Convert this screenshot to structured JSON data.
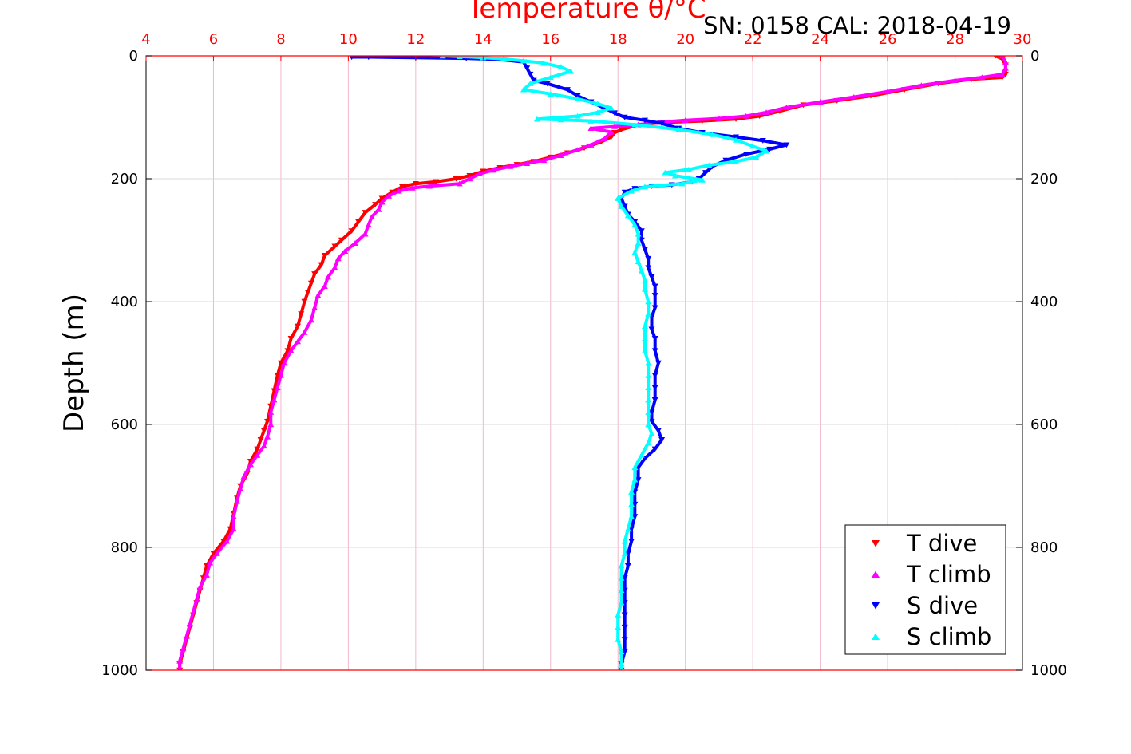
{
  "chart_data": {
    "type": "scatter",
    "title": "Temperature θ/°C",
    "subtitle": "SN: 0158  CAL: 2018-04-19",
    "ylabel": "Depth (m)",
    "xlim": [
      4,
      30
    ],
    "ylim": [
      0,
      1000
    ],
    "y_inverted": true,
    "grid": true,
    "legend_position": "bottom-right",
    "x_ticks": [
      "4",
      "6",
      "8",
      "10",
      "12",
      "14",
      "16",
      "18",
      "20",
      "22",
      "24",
      "26",
      "28",
      "30"
    ],
    "y_ticks": [
      "0",
      "200",
      "400",
      "600",
      "800",
      "1000"
    ],
    "colors": {
      "top_axis": "#ff0000",
      "grid_vertical": "#f0b8cc",
      "grid_horizontal": "#d9d9d9",
      "T dive": "#ff0000",
      "T climb": "#ff00ff",
      "S dive": "#0000ff",
      "S climb": "#00ffff"
    },
    "series": [
      {
        "name": "T dive",
        "marker": "triangle-down",
        "points": [
          [
            29.2,
            0
          ],
          [
            29.4,
            5
          ],
          [
            29.5,
            15
          ],
          [
            29.5,
            30
          ],
          [
            29.4,
            35
          ],
          [
            28.5,
            38
          ],
          [
            27.5,
            45
          ],
          [
            26.5,
            55
          ],
          [
            25.5,
            65
          ],
          [
            24.5,
            73
          ],
          [
            23.5,
            80
          ],
          [
            22.8,
            90
          ],
          [
            22.2,
            98
          ],
          [
            21.5,
            103
          ],
          [
            20.5,
            106
          ],
          [
            19.5,
            108
          ],
          [
            19.0,
            110
          ],
          [
            18.5,
            114
          ],
          [
            18.1,
            120
          ],
          [
            17.9,
            125
          ],
          [
            17.8,
            132
          ],
          [
            17.5,
            140
          ],
          [
            17.0,
            150
          ],
          [
            16.5,
            158
          ],
          [
            16.0,
            165
          ],
          [
            15.5,
            172
          ],
          [
            15.0,
            177
          ],
          [
            14.5,
            182
          ],
          [
            14.0,
            188
          ],
          [
            13.6,
            195
          ],
          [
            13.2,
            200
          ],
          [
            12.6,
            205
          ],
          [
            12.0,
            208
          ],
          [
            11.6,
            213
          ],
          [
            11.3,
            222
          ],
          [
            11.0,
            232
          ],
          [
            10.8,
            242
          ],
          [
            10.5,
            255
          ],
          [
            10.3,
            270
          ],
          [
            10.1,
            285
          ],
          [
            9.8,
            300
          ],
          [
            9.6,
            310
          ],
          [
            9.3,
            325
          ],
          [
            9.2,
            340
          ],
          [
            9.0,
            355
          ],
          [
            8.9,
            370
          ],
          [
            8.8,
            385
          ],
          [
            8.7,
            400
          ],
          [
            8.6,
            420
          ],
          [
            8.5,
            440
          ],
          [
            8.3,
            460
          ],
          [
            8.2,
            480
          ],
          [
            8.0,
            500
          ],
          [
            7.9,
            520
          ],
          [
            7.8,
            545
          ],
          [
            7.7,
            570
          ],
          [
            7.6,
            595
          ],
          [
            7.5,
            610
          ],
          [
            7.4,
            625
          ],
          [
            7.3,
            640
          ],
          [
            7.1,
            660
          ],
          [
            7.0,
            680
          ],
          [
            6.8,
            700
          ],
          [
            6.7,
            720
          ],
          [
            6.6,
            745
          ],
          [
            6.5,
            770
          ],
          [
            6.3,
            790
          ],
          [
            6.0,
            810
          ],
          [
            5.8,
            830
          ],
          [
            5.7,
            850
          ],
          [
            5.6,
            870
          ],
          [
            5.5,
            890
          ],
          [
            5.4,
            910
          ],
          [
            5.3,
            930
          ],
          [
            5.2,
            950
          ],
          [
            5.1,
            970
          ],
          [
            5.0,
            990
          ],
          [
            5.0,
            1000
          ]
        ]
      },
      {
        "name": "T climb",
        "marker": "triangle-up",
        "points": [
          [
            29.4,
            0
          ],
          [
            29.5,
            10
          ],
          [
            29.5,
            20
          ],
          [
            29.4,
            30
          ],
          [
            28.8,
            35
          ],
          [
            28.0,
            40
          ],
          [
            27.0,
            48
          ],
          [
            26.0,
            58
          ],
          [
            25.0,
            67
          ],
          [
            24.0,
            75
          ],
          [
            23.0,
            84
          ],
          [
            22.4,
            92
          ],
          [
            21.8,
            98
          ],
          [
            21.0,
            102
          ],
          [
            20.0,
            105
          ],
          [
            19.2,
            108
          ],
          [
            18.6,
            112
          ],
          [
            17.9,
            115
          ],
          [
            17.2,
            118
          ],
          [
            17.8,
            124
          ],
          [
            17.6,
            135
          ],
          [
            17.2,
            145
          ],
          [
            16.8,
            153
          ],
          [
            16.3,
            162
          ],
          [
            15.8,
            170
          ],
          [
            15.3,
            175
          ],
          [
            14.8,
            180
          ],
          [
            14.3,
            186
          ],
          [
            13.9,
            192
          ],
          [
            13.6,
            200
          ],
          [
            13.3,
            208
          ],
          [
            12.4,
            212
          ],
          [
            11.9,
            215
          ],
          [
            11.5,
            220
          ],
          [
            11.2,
            228
          ],
          [
            11.0,
            238
          ],
          [
            10.9,
            250
          ],
          [
            10.7,
            262
          ],
          [
            10.6,
            275
          ],
          [
            10.5,
            290
          ],
          [
            10.2,
            305
          ],
          [
            9.9,
            318
          ],
          [
            9.7,
            330
          ],
          [
            9.6,
            345
          ],
          [
            9.4,
            360
          ],
          [
            9.3,
            375
          ],
          [
            9.1,
            390
          ],
          [
            9.0,
            410
          ],
          [
            8.9,
            430
          ],
          [
            8.7,
            450
          ],
          [
            8.5,
            465
          ],
          [
            8.3,
            480
          ],
          [
            8.1,
            500
          ],
          [
            8.0,
            520
          ],
          [
            7.9,
            540
          ],
          [
            7.8,
            560
          ],
          [
            7.7,
            580
          ],
          [
            7.7,
            600
          ],
          [
            7.6,
            620
          ],
          [
            7.5,
            635
          ],
          [
            7.3,
            650
          ],
          [
            7.1,
            665
          ],
          [
            6.9,
            685
          ],
          [
            6.8,
            705
          ],
          [
            6.7,
            725
          ],
          [
            6.6,
            750
          ],
          [
            6.6,
            770
          ],
          [
            6.4,
            790
          ],
          [
            6.1,
            810
          ],
          [
            5.9,
            825
          ],
          [
            5.8,
            845
          ],
          [
            5.6,
            865
          ],
          [
            5.5,
            885
          ],
          [
            5.4,
            905
          ],
          [
            5.3,
            925
          ],
          [
            5.2,
            945
          ],
          [
            5.1,
            965
          ],
          [
            5.0,
            985
          ],
          [
            5.0,
            1000
          ]
        ]
      },
      {
        "name": "S dive",
        "marker": "triangle-down",
        "points": [
          [
            10.1,
            2
          ],
          [
            10.6,
            2
          ],
          [
            12.0,
            3
          ],
          [
            13.5,
            4
          ],
          [
            14.5,
            6
          ],
          [
            15.2,
            10
          ],
          [
            15.3,
            20
          ],
          [
            15.4,
            30
          ],
          [
            15.5,
            40
          ],
          [
            15.9,
            45
          ],
          [
            16.5,
            55
          ],
          [
            16.8,
            65
          ],
          [
            17.2,
            75
          ],
          [
            17.6,
            85
          ],
          [
            17.9,
            93
          ],
          [
            18.2,
            100
          ],
          [
            18.8,
            105
          ],
          [
            19.3,
            110
          ],
          [
            19.8,
            118
          ],
          [
            20.5,
            125
          ],
          [
            21.5,
            132
          ],
          [
            22.3,
            138
          ],
          [
            23.0,
            145
          ],
          [
            22.5,
            152
          ],
          [
            21.8,
            160
          ],
          [
            21.2,
            170
          ],
          [
            20.8,
            180
          ],
          [
            20.6,
            190
          ],
          [
            20.4,
            200
          ],
          [
            20.2,
            205
          ],
          [
            19.6,
            210
          ],
          [
            19.0,
            212
          ],
          [
            18.5,
            216
          ],
          [
            18.2,
            222
          ],
          [
            18.1,
            232
          ],
          [
            18.2,
            245
          ],
          [
            18.3,
            258
          ],
          [
            18.5,
            270
          ],
          [
            18.7,
            285
          ],
          [
            18.7,
            300
          ],
          [
            18.8,
            315
          ],
          [
            18.9,
            330
          ],
          [
            18.9,
            345
          ],
          [
            19.0,
            360
          ],
          [
            19.1,
            375
          ],
          [
            19.1,
            390
          ],
          [
            19.1,
            410
          ],
          [
            19.0,
            425
          ],
          [
            19.0,
            445
          ],
          [
            19.1,
            460
          ],
          [
            19.1,
            480
          ],
          [
            19.2,
            500
          ],
          [
            19.1,
            520
          ],
          [
            19.1,
            540
          ],
          [
            19.1,
            560
          ],
          [
            19.0,
            580
          ],
          [
            19.0,
            595
          ],
          [
            19.2,
            610
          ],
          [
            19.3,
            625
          ],
          [
            19.1,
            640
          ],
          [
            18.8,
            655
          ],
          [
            18.6,
            670
          ],
          [
            18.6,
            690
          ],
          [
            18.5,
            710
          ],
          [
            18.5,
            730
          ],
          [
            18.5,
            750
          ],
          [
            18.4,
            770
          ],
          [
            18.4,
            790
          ],
          [
            18.3,
            810
          ],
          [
            18.3,
            830
          ],
          [
            18.2,
            850
          ],
          [
            18.2,
            870
          ],
          [
            18.2,
            890
          ],
          [
            18.2,
            910
          ],
          [
            18.2,
            930
          ],
          [
            18.2,
            950
          ],
          [
            18.2,
            970
          ],
          [
            18.1,
            990
          ],
          [
            18.1,
            1000
          ]
        ]
      },
      {
        "name": "S climb",
        "marker": "triangle-up",
        "points": [
          [
            12.8,
            0
          ],
          [
            13.3,
            1
          ],
          [
            14.0,
            3
          ],
          [
            14.6,
            5
          ],
          [
            15.2,
            8
          ],
          [
            15.8,
            12
          ],
          [
            16.3,
            18
          ],
          [
            16.6,
            25
          ],
          [
            16.0,
            35
          ],
          [
            15.4,
            45
          ],
          [
            15.2,
            55
          ],
          [
            16.0,
            62
          ],
          [
            16.8,
            70
          ],
          [
            17.4,
            78
          ],
          [
            17.8,
            85
          ],
          [
            17.4,
            92
          ],
          [
            16.8,
            98
          ],
          [
            15.6,
            103
          ],
          [
            16.3,
            104
          ],
          [
            17.2,
            106
          ],
          [
            18.5,
            112
          ],
          [
            19.8,
            120
          ],
          [
            20.8,
            128
          ],
          [
            21.5,
            137
          ],
          [
            22.0,
            147
          ],
          [
            22.4,
            155
          ],
          [
            22.1,
            165
          ],
          [
            21.5,
            172
          ],
          [
            20.7,
            178
          ],
          [
            20.1,
            185
          ],
          [
            19.4,
            190
          ],
          [
            19.7,
            195
          ],
          [
            20.5,
            202
          ],
          [
            19.9,
            208
          ],
          [
            18.8,
            213
          ],
          [
            18.4,
            220
          ],
          [
            18.0,
            232
          ],
          [
            18.1,
            245
          ],
          [
            18.3,
            260
          ],
          [
            18.5,
            275
          ],
          [
            18.6,
            290
          ],
          [
            18.6,
            305
          ],
          [
            18.5,
            320
          ],
          [
            18.6,
            335
          ],
          [
            18.7,
            350
          ],
          [
            18.8,
            365
          ],
          [
            18.8,
            380
          ],
          [
            18.9,
            400
          ],
          [
            18.9,
            420
          ],
          [
            18.8,
            440
          ],
          [
            18.8,
            460
          ],
          [
            18.8,
            480
          ],
          [
            18.9,
            500
          ],
          [
            18.9,
            520
          ],
          [
            18.9,
            540
          ],
          [
            18.9,
            560
          ],
          [
            18.9,
            580
          ],
          [
            18.9,
            600
          ],
          [
            19.0,
            615
          ],
          [
            18.9,
            630
          ],
          [
            18.7,
            650
          ],
          [
            18.5,
            670
          ],
          [
            18.5,
            690
          ],
          [
            18.4,
            710
          ],
          [
            18.4,
            730
          ],
          [
            18.4,
            750
          ],
          [
            18.3,
            770
          ],
          [
            18.2,
            790
          ],
          [
            18.2,
            810
          ],
          [
            18.1,
            830
          ],
          [
            18.1,
            850
          ],
          [
            18.1,
            870
          ],
          [
            18.1,
            890
          ],
          [
            18.0,
            910
          ],
          [
            18.0,
            930
          ],
          [
            18.0,
            950
          ],
          [
            18.1,
            970
          ],
          [
            18.1,
            990
          ],
          [
            18.1,
            1000
          ]
        ]
      }
    ]
  }
}
